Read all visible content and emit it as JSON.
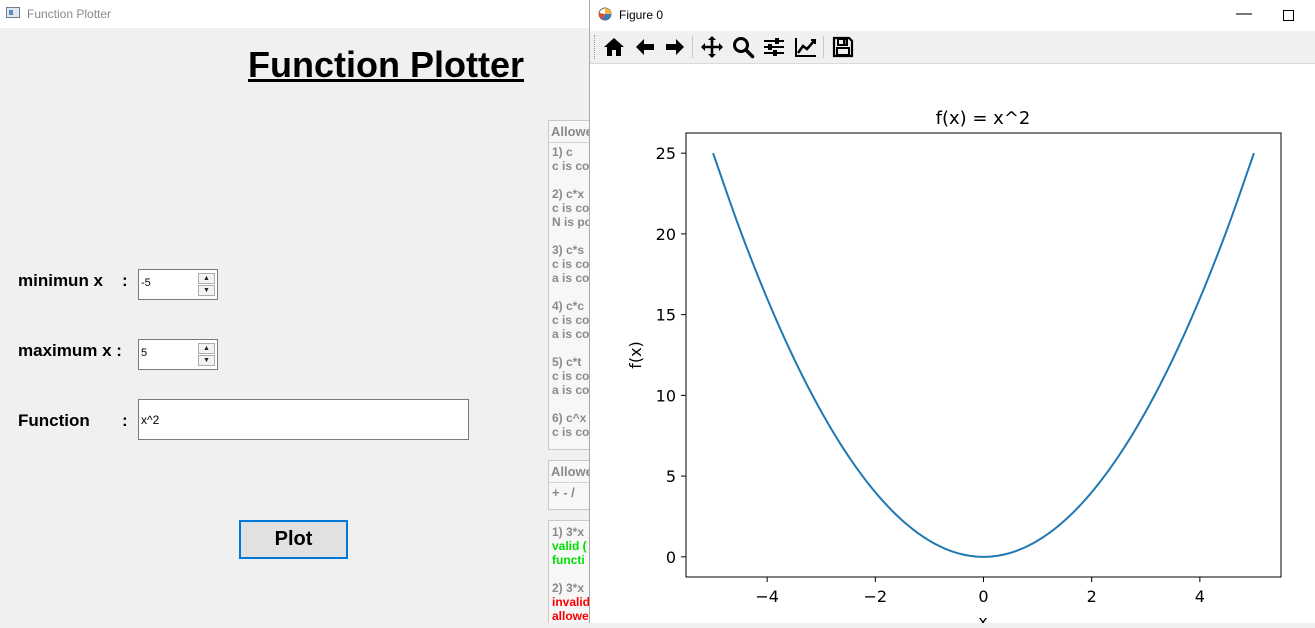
{
  "app": {
    "title": "Function Plotter",
    "heading": "Function Plotter",
    "min_x_label": "minimun x",
    "max_x_label": "maximum x :",
    "function_label": "Function",
    "colon": ":",
    "min_x_value": "-5",
    "max_x_value": "5",
    "function_value": "x^2",
    "plot_button": "Plot",
    "spin_up": "▲",
    "spin_down": "▼"
  },
  "rules_panel": {
    "header": "Allowe",
    "lines": [
      "1) c",
      "c is co",
      "",
      "2) c*x",
      "c is co",
      "N is po",
      "",
      "3) c*s",
      "c is co",
      "a is co",
      "",
      "4) c*c",
      "c is co",
      "a is co",
      "",
      "5) c*t",
      "c is co",
      "a is co",
      "",
      "6) c^x",
      "c is co"
    ]
  },
  "operators_panel": {
    "header": "Allowe",
    "ops": "+ - /"
  },
  "examples_panel": {
    "ex1_title": "1) 3*x",
    "ex1_status": "valid (",
    "ex1_detail": "functi",
    "ex2_title": "2) 3*x",
    "ex2_status": "invalid",
    "ex2_detail": "allowe"
  },
  "figure": {
    "title": "Figure 0",
    "minimize": "—",
    "toolbar_icons": [
      "home-icon",
      "back-arrow-icon",
      "forward-arrow-icon",
      "pan-icon",
      "zoom-icon",
      "configure-subplots-icon",
      "edit-axis-icon",
      "save-icon"
    ]
  },
  "chart_data": {
    "type": "line",
    "title": "f(x) = x^2",
    "xlabel": "x",
    "ylabel": "f(x)",
    "xlim": [
      -5.5,
      5.5
    ],
    "ylim": [
      -1.25,
      26.25
    ],
    "xticks": [
      -4,
      -2,
      0,
      2,
      4
    ],
    "xtick_labels": [
      "−4",
      "−2",
      "0",
      "2",
      "4"
    ],
    "yticks": [
      0,
      5,
      10,
      15,
      20,
      25
    ],
    "ytick_labels": [
      "0",
      "5",
      "10",
      "15",
      "20",
      "25"
    ],
    "grid": false,
    "line_color": "#1f77b4",
    "series": [
      {
        "x": [
          -5,
          -4.5,
          -4,
          -3.5,
          -3,
          -2.5,
          -2,
          -1.5,
          -1,
          -0.5,
          0,
          0.5,
          1,
          1.5,
          2,
          2.5,
          3,
          3.5,
          4,
          4.5,
          5
        ],
        "y": [
          25,
          20.25,
          16,
          12.25,
          9,
          6.25,
          4,
          2.25,
          1,
          0.25,
          0,
          0.25,
          1,
          2.25,
          4,
          6.25,
          9,
          12.25,
          16,
          20.25,
          25
        ]
      }
    ]
  }
}
